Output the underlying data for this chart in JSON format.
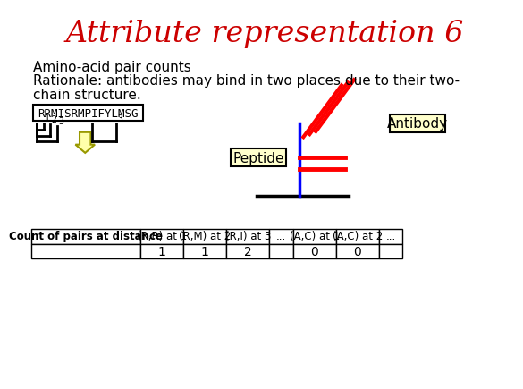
{
  "title": "Attribute representation 6",
  "title_color": "#cc0000",
  "title_fontsize": 24,
  "bg_color": "#ffffff",
  "body_text_line1": "Amino-acid pair counts",
  "body_text_line2": "Rationale: antibodies may bind in two places due to their two-",
  "body_text_line3": "chain structure.",
  "sequence_text": "RRMISRMPIFYLMSG",
  "antibody_label": "Antibody",
  "peptide_label": "Peptide",
  "table_header": [
    "Count of pairs at distance",
    "(R,R) at 1",
    "(R,M) at 2",
    "(R,I) at 3",
    "...",
    "(A,C) at 1",
    "(A,C) at 2",
    "..."
  ],
  "table_row": [
    "",
    "1",
    "1",
    "2",
    "",
    "0",
    "0",
    ""
  ],
  "antibody_box_color": "#ffffcc",
  "peptide_box_color": "#ffffcc",
  "seq_box_color": "#ffffff",
  "arrow_face_color": "#ffffaa",
  "arrow_edge_color": "#999900"
}
